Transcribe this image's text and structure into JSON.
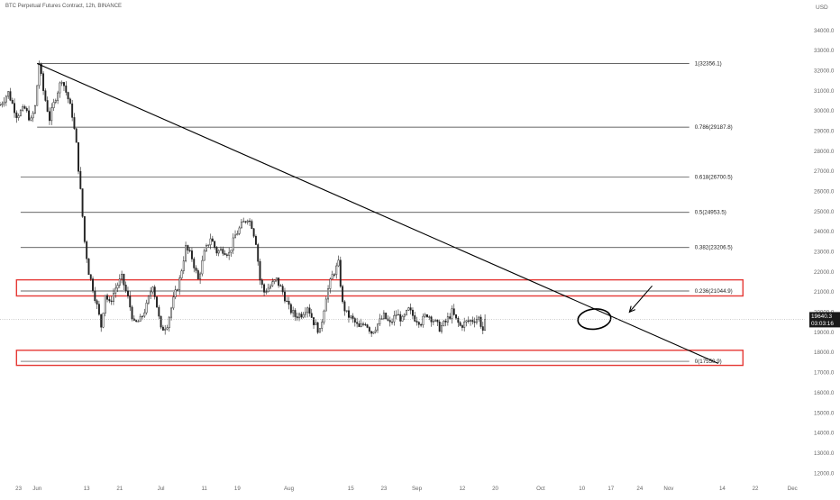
{
  "header": {
    "title": "BTC Perpetual Futures Contract, 12h, BINANCE"
  },
  "chart_data": {
    "type": "candlestick",
    "y_axis": {
      "unit": "USD",
      "ticks": [
        12000,
        13000,
        14000,
        15000,
        16000,
        17000,
        18000,
        19000,
        20000,
        21000,
        22000,
        23000,
        24000,
        25000,
        26000,
        27000,
        28000,
        29000,
        30000,
        31000,
        32000,
        33000,
        34000
      ],
      "range": [
        11600,
        34700
      ],
      "decimals": 1
    },
    "x_axis": {
      "tick_labels": [
        "23",
        "Jun",
        "13",
        "21",
        "Jul",
        "11",
        "19",
        "Aug",
        "15",
        "23",
        "Sep",
        "12",
        "20",
        "Oct",
        "10",
        "17",
        "24",
        "Nov",
        "14",
        "22",
        "Dec"
      ],
      "tick_index": [
        -9,
        0,
        24,
        40,
        60,
        81,
        97,
        122,
        152,
        168,
        184,
        206,
        222,
        244,
        264,
        278,
        292,
        306,
        332,
        348,
        366
      ],
      "index_range": [
        -18,
        372
      ]
    },
    "price_label": {
      "value": "19640.3",
      "countdown": "03:03:16"
    },
    "fib_levels": [
      {
        "label": "1(32356.1)",
        "value": 32356.1,
        "start_index": 0
      },
      {
        "label": "0.786(29187.8)",
        "value": 29187.8,
        "start_index": 0
      },
      {
        "label": "0.618(26700.5)",
        "value": 26700.5,
        "start_index": -8
      },
      {
        "label": "0.5(24953.5)",
        "value": 24953.5,
        "start_index": -8
      },
      {
        "label": "0.382(23206.5)",
        "value": 23206.5,
        "start_index": -8
      },
      {
        "label": "0.236(21044.9)",
        "value": 21044.9,
        "start_index": -8
      },
      {
        "label": "0(17550.9)",
        "value": 17550.9,
        "start_index": -8
      }
    ],
    "fib_end_index": 316,
    "trendline": {
      "start": {
        "index": 0,
        "value": 32350
      },
      "end": {
        "index": 330,
        "value": 17450
      }
    },
    "support_zones": [
      {
        "low": 20800,
        "high": 21600,
        "from_index": -10,
        "to_index": 342
      },
      {
        "low": 17350,
        "high": 18100,
        "from_index": -10,
        "to_index": 342
      }
    ],
    "ellipse": {
      "index": 270,
      "value": 19650,
      "span_index": 16,
      "span_value": 1000
    },
    "arrow": {
      "from": {
        "index": 298,
        "value": 21300
      },
      "to": {
        "index": 287,
        "value": 20000
      }
    },
    "anchors": [
      [
        -18,
        30300
      ],
      [
        -14,
        30900
      ],
      [
        -10,
        29800
      ],
      [
        -6,
        30100
      ],
      [
        -3,
        29500
      ],
      [
        -1,
        30200
      ],
      [
        1,
        32350
      ],
      [
        3,
        31000
      ],
      [
        6,
        29600
      ],
      [
        9,
        30700
      ],
      [
        12,
        31600
      ],
      [
        15,
        30600
      ],
      [
        17,
        29800
      ],
      [
        19,
        28300
      ],
      [
        21,
        26000
      ],
      [
        23,
        23500
      ],
      [
        25,
        22000
      ],
      [
        27,
        21200
      ],
      [
        29,
        20300
      ],
      [
        31,
        19300
      ],
      [
        33,
        20900
      ],
      [
        35,
        20400
      ],
      [
        38,
        21200
      ],
      [
        41,
        21700
      ],
      [
        44,
        20700
      ],
      [
        47,
        19400
      ],
      [
        50,
        19600
      ],
      [
        53,
        20300
      ],
      [
        56,
        21400
      ],
      [
        58,
        20300
      ],
      [
        60,
        19100
      ],
      [
        63,
        19400
      ],
      [
        66,
        20600
      ],
      [
        69,
        21600
      ],
      [
        72,
        23200
      ],
      [
        75,
        22700
      ],
      [
        78,
        21600
      ],
      [
        81,
        22900
      ],
      [
        84,
        23700
      ],
      [
        87,
        23000
      ],
      [
        90,
        23100
      ],
      [
        93,
        22900
      ],
      [
        96,
        23800
      ],
      [
        99,
        24300
      ],
      [
        102,
        24700
      ],
      [
        104,
        24300
      ],
      [
        106,
        23500
      ],
      [
        108,
        21600
      ],
      [
        110,
        21000
      ],
      [
        113,
        21300
      ],
      [
        116,
        21600
      ],
      [
        119,
        21000
      ],
      [
        122,
        20200
      ],
      [
        125,
        19800
      ],
      [
        128,
        19900
      ],
      [
        131,
        20300
      ],
      [
        134,
        19500
      ],
      [
        137,
        19000
      ],
      [
        140,
        20800
      ],
      [
        143,
        21800
      ],
      [
        146,
        22400
      ],
      [
        148,
        20400
      ],
      [
        150,
        19900
      ],
      [
        153,
        19600
      ],
      [
        156,
        19200
      ],
      [
        159,
        19500
      ],
      [
        162,
        19000
      ],
      [
        165,
        19400
      ],
      [
        168,
        19800
      ],
      [
        171,
        19400
      ],
      [
        174,
        19900
      ],
      [
        177,
        19600
      ],
      [
        180,
        20100
      ],
      [
        183,
        19700
      ],
      [
        186,
        19500
      ],
      [
        189,
        19900
      ],
      [
        192,
        19600
      ],
      [
        195,
        19200
      ],
      [
        198,
        19500
      ],
      [
        201,
        20000
      ],
      [
        203,
        19600
      ],
      [
        205,
        19300
      ],
      [
        208,
        19500
      ],
      [
        211,
        19600
      ],
      [
        214,
        19700
      ],
      [
        216,
        19100
      ]
    ],
    "last_close": 19640.3
  }
}
